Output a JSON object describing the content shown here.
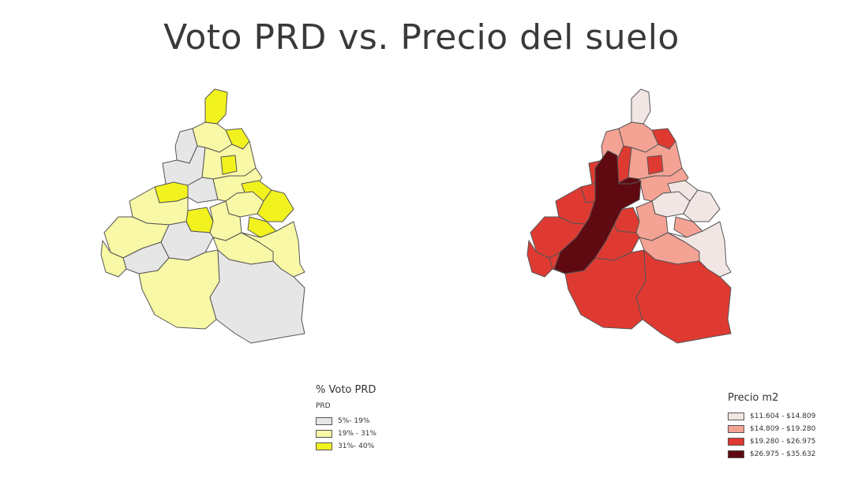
{
  "title": "Voto PRD vs. Precio del suelo",
  "colors": {
    "outline": "#555555",
    "vote_low": "#e6e6e6",
    "vote_mid": "#f8f8a6",
    "vote_high": "#f2f21f",
    "price_1": "#f1e6e4",
    "price_2": "#f3a294",
    "price_3": "#df3a32",
    "price_4": "#5e0a10"
  },
  "legend_vote": {
    "title": "% Voto PRD",
    "subtitle": "PRD",
    "items": [
      {
        "label": "5%- 19%",
        "color": "#e6e6e6"
      },
      {
        "label": "19% - 31%",
        "color": "#f8f8a6"
      },
      {
        "label": "31%- 40%",
        "color": "#f2f21f"
      }
    ]
  },
  "legend_price": {
    "title": "Precio m2",
    "items": [
      {
        "label": "$11.604 - $14.809",
        "color": "#f1e6e4"
      },
      {
        "label": "$14.809 - $19.280",
        "color": "#f3a294"
      },
      {
        "label": "$19.280 - $26.975",
        "color": "#df3a32"
      },
      {
        "label": "$26.975 - $35.632",
        "color": "#5e0a10"
      }
    ]
  }
}
